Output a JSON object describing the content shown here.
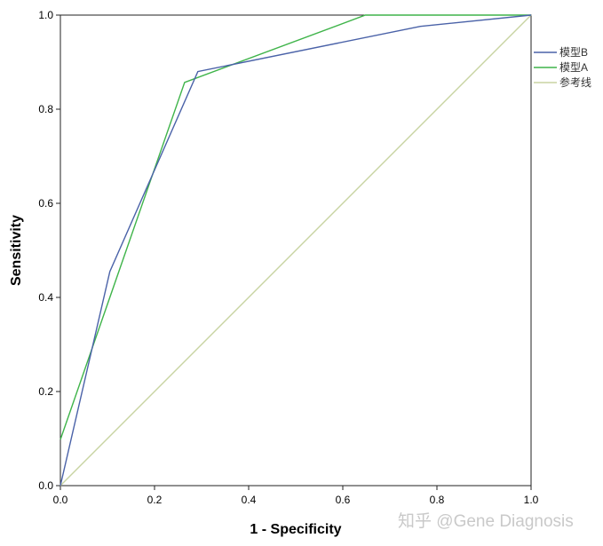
{
  "chart_data": {
    "type": "line",
    "xlabel": "1 - Specificity",
    "ylabel": "Sensitivity",
    "xlim": [
      0,
      1
    ],
    "ylim": [
      0,
      1
    ],
    "x_ticks": [
      "0.0",
      "0.2",
      "0.4",
      "0.6",
      "0.8",
      "1.0"
    ],
    "y_ticks": [
      "0.0",
      "0.2",
      "0.4",
      "0.6",
      "0.8",
      "1.0"
    ],
    "grid": false,
    "legend_position": "right",
    "series": [
      {
        "name": "模型B",
        "color": "#4a62a8",
        "points": [
          [
            0,
            0
          ],
          [
            0.105,
            0.455
          ],
          [
            0.292,
            0.88
          ],
          [
            0.765,
            0.976
          ],
          [
            1,
            1
          ]
        ]
      },
      {
        "name": "模型A",
        "color": "#3fb44a",
        "points": [
          [
            0,
            0.098
          ],
          [
            0.264,
            0.857
          ],
          [
            0.648,
            1.0
          ],
          [
            1,
            1
          ]
        ]
      },
      {
        "name": "参考线",
        "color": "#c8d4a2",
        "points": [
          [
            0,
            0
          ],
          [
            1,
            1
          ]
        ]
      }
    ]
  },
  "watermark": "知乎 @Gene Diagnosis"
}
